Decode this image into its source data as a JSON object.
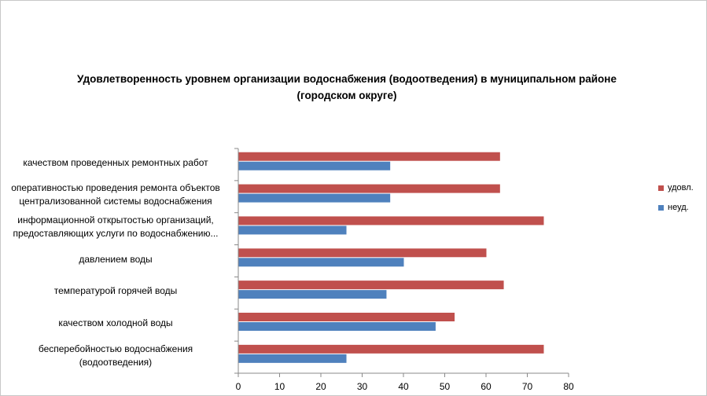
{
  "chart_data": {
    "type": "bar",
    "orientation": "horizontal",
    "title": "Удовлетворенность уровнем организации водоснабжения (водоотведения) в муниципальном районе (городском округе)",
    "title_lines": [
      "Удовлетворенность уровнем организации водоснабжения (водоотведения) в муниципальном районе",
      "(городском округе)"
    ],
    "categories": [
      [
        "качеством проведенных ремонтных работ"
      ],
      [
        "оперативностью проведения ремонта объектов",
        "централизованной системы водоснабжения"
      ],
      [
        "информационной открытостью организаций,",
        "предоставляющих услуги по водоснабжению..."
      ],
      [
        "давлением воды"
      ],
      [
        "температурой горячей воды"
      ],
      [
        "качеством холодной воды"
      ],
      [
        "бесперебойностью водоснабжения",
        "(водоотведения)"
      ]
    ],
    "series": [
      {
        "name": "удовл.",
        "color": "#c0504d",
        "values": [
          63.3,
          63.3,
          73.9,
          60.0,
          64.2,
          52.3,
          73.9
        ]
      },
      {
        "name": "неуд.",
        "color": "#4f81bd",
        "values": [
          36.7,
          36.7,
          26.1,
          40.0,
          35.8,
          47.7,
          26.1
        ]
      }
    ],
    "xlim": [
      0,
      80
    ],
    "xticks": [
      0,
      10,
      20,
      30,
      40,
      50,
      60,
      70,
      80
    ],
    "legend_position": "right",
    "grid": false
  }
}
